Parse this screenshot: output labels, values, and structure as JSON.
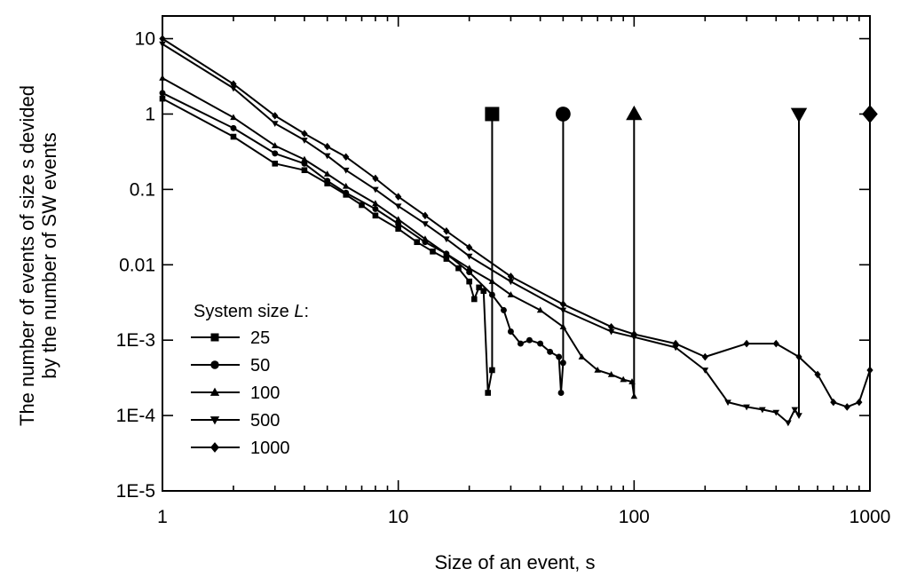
{
  "chart_data": {
    "type": "line",
    "xlabel": "Size of an event, s",
    "ylabel_line1": "The number of events of size s devided",
    "ylabel_line2": "by the number of SW events",
    "x_scale": "log",
    "y_scale": "log",
    "xlim": [
      1,
      1000
    ],
    "ylim": [
      1e-05,
      20
    ],
    "x_ticks": [
      {
        "value": 1,
        "label": "1"
      },
      {
        "value": 10,
        "label": "10"
      },
      {
        "value": 100,
        "label": "100"
      },
      {
        "value": 1000,
        "label": "1000"
      }
    ],
    "y_ticks": [
      {
        "value": 10,
        "label": "10"
      },
      {
        "value": 1,
        "label": "1"
      },
      {
        "value": 0.1,
        "label": "0.1"
      },
      {
        "value": 0.01,
        "label": "0.01"
      },
      {
        "value": 0.001,
        "label": "1E-3"
      },
      {
        "value": 0.0001,
        "label": "1E-4"
      },
      {
        "value": 1e-05,
        "label": "1E-5"
      }
    ],
    "grid": false,
    "legend": {
      "title_prefix": "System size ",
      "title_var": "L",
      "title_suffix": ":",
      "placement": "bottom-left"
    },
    "series": [
      {
        "name": "25",
        "marker": "square",
        "x": [
          1,
          2,
          3,
          4,
          5,
          6,
          7,
          8,
          10,
          12,
          14,
          16,
          18,
          20,
          21,
          22,
          23,
          24,
          25,
          25
        ],
        "y": [
          1.6,
          0.5,
          0.22,
          0.18,
          0.12,
          0.085,
          0.062,
          0.045,
          0.03,
          0.02,
          0.015,
          0.012,
          0.009,
          0.006,
          0.0035,
          0.005,
          0.0045,
          0.0002,
          0.0004,
          1
        ]
      },
      {
        "name": "50",
        "marker": "circle",
        "x": [
          1,
          2,
          3,
          4,
          5,
          6,
          8,
          10,
          13,
          16,
          20,
          25,
          28,
          30,
          33,
          36,
          40,
          44,
          48,
          49,
          50,
          50
        ],
        "y": [
          1.9,
          0.65,
          0.3,
          0.22,
          0.13,
          0.09,
          0.055,
          0.035,
          0.02,
          0.014,
          0.008,
          0.004,
          0.0025,
          0.0013,
          0.0009,
          0.001,
          0.0009,
          0.0007,
          0.0006,
          0.0002,
          0.0005,
          1
        ]
      },
      {
        "name": "100",
        "marker": "triangle-up",
        "x": [
          1,
          2,
          3,
          4,
          5,
          6,
          8,
          10,
          13,
          16,
          20,
          25,
          30,
          40,
          50,
          60,
          70,
          80,
          90,
          98,
          100,
          100
        ],
        "y": [
          3.0,
          0.9,
          0.38,
          0.25,
          0.16,
          0.11,
          0.065,
          0.04,
          0.022,
          0.014,
          0.009,
          0.006,
          0.004,
          0.0025,
          0.0015,
          0.0006,
          0.0004,
          0.00035,
          0.0003,
          0.00028,
          0.00018,
          1
        ]
      },
      {
        "name": "500",
        "marker": "triangle-down",
        "x": [
          1,
          2,
          3,
          4,
          5,
          6,
          8,
          10,
          13,
          16,
          20,
          30,
          50,
          80,
          100,
          150,
          200,
          250,
          300,
          350,
          400,
          450,
          480,
          500,
          500
        ],
        "y": [
          8.5,
          2.2,
          0.75,
          0.45,
          0.28,
          0.18,
          0.1,
          0.06,
          0.035,
          0.022,
          0.013,
          0.006,
          0.0025,
          0.0013,
          0.0011,
          0.0008,
          0.0004,
          0.00015,
          0.00013,
          0.00012,
          0.00011,
          8e-05,
          0.00012,
          0.0001,
          1
        ]
      },
      {
        "name": "1000",
        "marker": "diamond",
        "x": [
          1,
          2,
          3,
          4,
          5,
          6,
          8,
          10,
          13,
          16,
          20,
          30,
          50,
          80,
          100,
          150,
          200,
          300,
          400,
          500,
          600,
          700,
          800,
          900,
          1000,
          1000
        ],
        "y": [
          10,
          2.5,
          0.95,
          0.55,
          0.37,
          0.27,
          0.14,
          0.08,
          0.045,
          0.028,
          0.017,
          0.007,
          0.003,
          0.0015,
          0.0012,
          0.0009,
          0.0006,
          0.0009,
          0.0009,
          0.0006,
          0.00035,
          0.00015,
          0.00013,
          0.00015,
          0.0004,
          1
        ]
      }
    ]
  }
}
